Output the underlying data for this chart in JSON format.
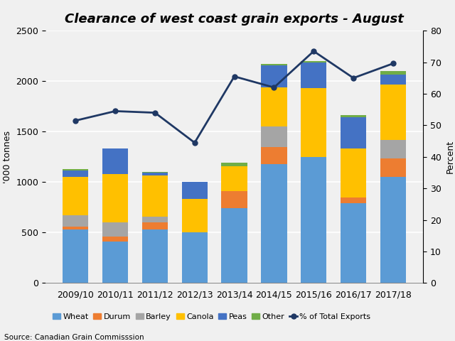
{
  "years": [
    "2009/10",
    "2010/11",
    "2011/12",
    "2012/13",
    "2013/14",
    "2014/15",
    "2015/16",
    "2016/17",
    "2017/18"
  ],
  "wheat": [
    530,
    410,
    530,
    505,
    740,
    1175,
    1250,
    790,
    1050
  ],
  "durum": [
    30,
    50,
    70,
    0,
    170,
    175,
    0,
    55,
    185
  ],
  "barley": [
    110,
    140,
    55,
    0,
    0,
    200,
    0,
    0,
    185
  ],
  "canola": [
    385,
    480,
    410,
    330,
    250,
    390,
    680,
    490,
    545
  ],
  "peas": [
    60,
    255,
    30,
    165,
    0,
    220,
    255,
    310,
    100
  ],
  "other": [
    15,
    0,
    5,
    0,
    30,
    10,
    15,
    20,
    35
  ],
  "pct_exports": [
    51.5,
    54.5,
    54.0,
    44.5,
    65.5,
    62.0,
    73.5,
    65.0,
    69.6
  ],
  "bar_colors": {
    "wheat": "#5b9bd5",
    "durum": "#ed7d31",
    "barley": "#a5a5a5",
    "canola": "#ffc000",
    "peas": "#4472c4",
    "other": "#70ad47"
  },
  "line_color": "#1f3864",
  "title": "Clearance of west coast grain exports - August",
  "ylabel_left": "'000 tonnes",
  "ylabel_right": "Percent",
  "ylim_left": [
    0,
    2500
  ],
  "ylim_right": [
    0,
    80
  ],
  "yticks_left": [
    0,
    500,
    1000,
    1500,
    2000,
    2500
  ],
  "yticks_right": [
    0,
    10,
    20,
    30,
    40,
    50,
    60,
    70,
    80
  ],
  "source": "Source: Canadian Grain Commisssion",
  "background_color": "#f0f0f0",
  "title_fontsize": 13,
  "axis_fontsize": 9,
  "legend_fontsize": 8
}
